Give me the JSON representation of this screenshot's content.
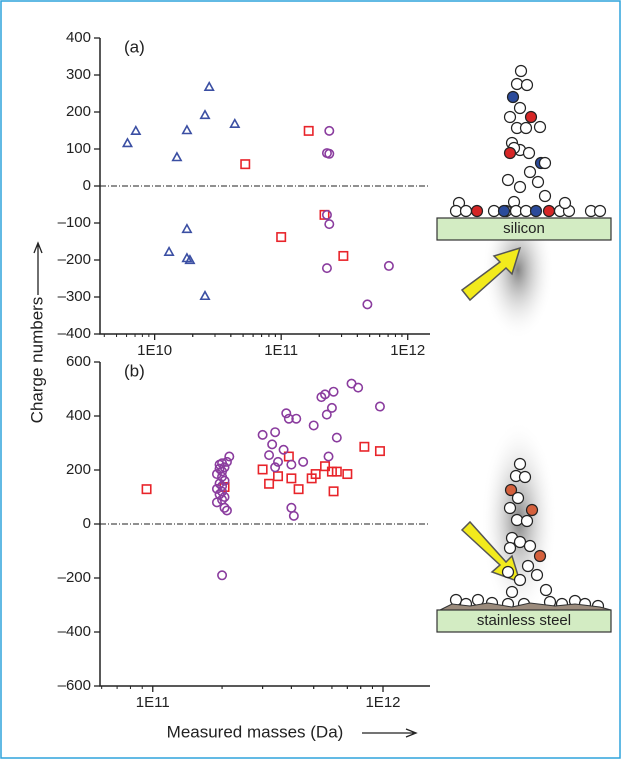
{
  "shared_labels": {
    "ylabel": "Charge numbers",
    "xlabel": "Measured masses (Da)"
  },
  "chart_data": [
    {
      "type": "scatter",
      "title": "(a)",
      "log_x": true,
      "zero_line": true,
      "xlim": [
        3700000000.0,
        1500000000000.0
      ],
      "ylim": [
        -400,
        400
      ],
      "xticks": [
        {
          "value": 10000000000.0,
          "label": "1E10"
        },
        {
          "value": 100000000000.0,
          "label": "1E11"
        },
        {
          "value": 1000000000000.0,
          "label": "1E12"
        }
      ],
      "yticks": [
        {
          "value": -400,
          "label": "–400"
        },
        {
          "value": -300,
          "label": "–300"
        },
        {
          "value": -200,
          "label": "–200"
        },
        {
          "value": -100,
          "label": "–100"
        },
        0,
        100,
        200,
        300,
        400
      ],
      "annotations": [
        "silicon"
      ],
      "series": [
        {
          "marker": "triangle",
          "color": "#3b4fa3",
          "x": [
            6100000000.0,
            7100000000.0,
            15000000000.0,
            18000000000.0,
            25000000000.0,
            27000000000.0,
            43000000000.0,
            13000000000.0,
            18000000000.0,
            18000000000.0,
            19000000000.0,
            25000000000.0
          ],
          "values": [
            116,
            149,
            78,
            151,
            192,
            268,
            168,
            -178,
            -116,
            -195,
            -200,
            -297
          ]
        },
        {
          "marker": "square",
          "color": "#e8242a",
          "x": [
            52000000000.0,
            165000000000.0,
            100000000000.0,
            220000000000.0,
            310000000000.0
          ],
          "values": [
            59,
            149,
            -138,
            -78,
            -189
          ]
        },
        {
          "marker": "circle",
          "color": "#8a3c9e",
          "x": [
            240000000000.0,
            230000000000.0,
            240000000000.0,
            230000000000.0,
            240000000000.0,
            230000000000.0,
            710000000000.0,
            480000000000.0
          ],
          "values": [
            149,
            89,
            87,
            -78,
            -103,
            -222,
            -216,
            -320
          ]
        }
      ]
    },
    {
      "type": "scatter",
      "title": "(b)",
      "log_x": true,
      "zero_line": true,
      "xlim": [
        59000000000.0,
        1600000000000.0
      ],
      "ylim": [
        -600,
        600
      ],
      "xticks": [
        {
          "value": 100000000000.0,
          "label": "1E11"
        },
        {
          "value": 1000000000000.0,
          "label": "1E12"
        }
      ],
      "yticks": [
        {
          "value": -600,
          "label": "–600"
        },
        {
          "value": -400,
          "label": "–400"
        },
        {
          "value": -200,
          "label": "–200"
        },
        0,
        200,
        400,
        600
      ],
      "annotations": [
        "stainless steel"
      ],
      "series": [
        {
          "marker": "square",
          "color": "#e8242a",
          "x": [
            94000000000.0,
            205000000000.0,
            300000000000.0,
            320000000000.0,
            350000000000.0,
            390000000000.0,
            400000000000.0,
            430000000000.0,
            490000000000.0,
            510000000000.0,
            560000000000.0,
            600000000000.0,
            610000000000.0,
            630000000000.0,
            700000000000.0,
            830000000000.0,
            970000000000.0
          ],
          "values": [
            129,
            137,
            202,
            149,
            177,
            250,
            169,
            129,
            169,
            185,
            214,
            194,
            121,
            194,
            185,
            286,
            270
          ]
        },
        {
          "marker": "circle",
          "color": "#8a3c9e",
          "x": [
            195000000000.0,
            200000000000.0,
            190000000000.0,
            200000000000.0,
            205000000000.0,
            195000000000.0,
            200000000000.0,
            190000000000.0,
            200000000000.0,
            195000000000.0,
            205000000000.0,
            200000000000.0,
            190000000000.0,
            205000000000.0,
            200000000000.0,
            195000000000.0,
            210000000000.0,
            215000000000.0,
            205000000000.0,
            210000000000.0,
            200000000000.0,
            300000000000.0,
            330000000000.0,
            340000000000.0,
            340000000000.0,
            350000000000.0,
            370000000000.0,
            380000000000.0,
            390000000000.0,
            400000000000.0,
            400000000000.0,
            410000000000.0,
            500000000000.0,
            540000000000.0,
            560000000000.0,
            570000000000.0,
            600000000000.0,
            610000000000.0,
            630000000000.0,
            580000000000.0,
            730000000000.0,
            780000000000.0,
            970000000000.0,
            450000000000.0,
            320000000000.0,
            420000000000.0
          ],
          "values": [
            205,
            195,
            185,
            175,
            160,
            150,
            140,
            130,
            120,
            110,
            100,
            90,
            80,
            210,
            225,
            220,
            230,
            250,
            60,
            50,
            -190,
            330,
            295,
            340,
            210,
            230,
            275,
            410,
            390,
            60,
            220,
            30,
            365,
            470,
            480,
            405,
            430,
            490,
            320,
            250,
            520,
            505,
            435,
            230,
            255,
            390
          ]
        }
      ]
    }
  ]
}
